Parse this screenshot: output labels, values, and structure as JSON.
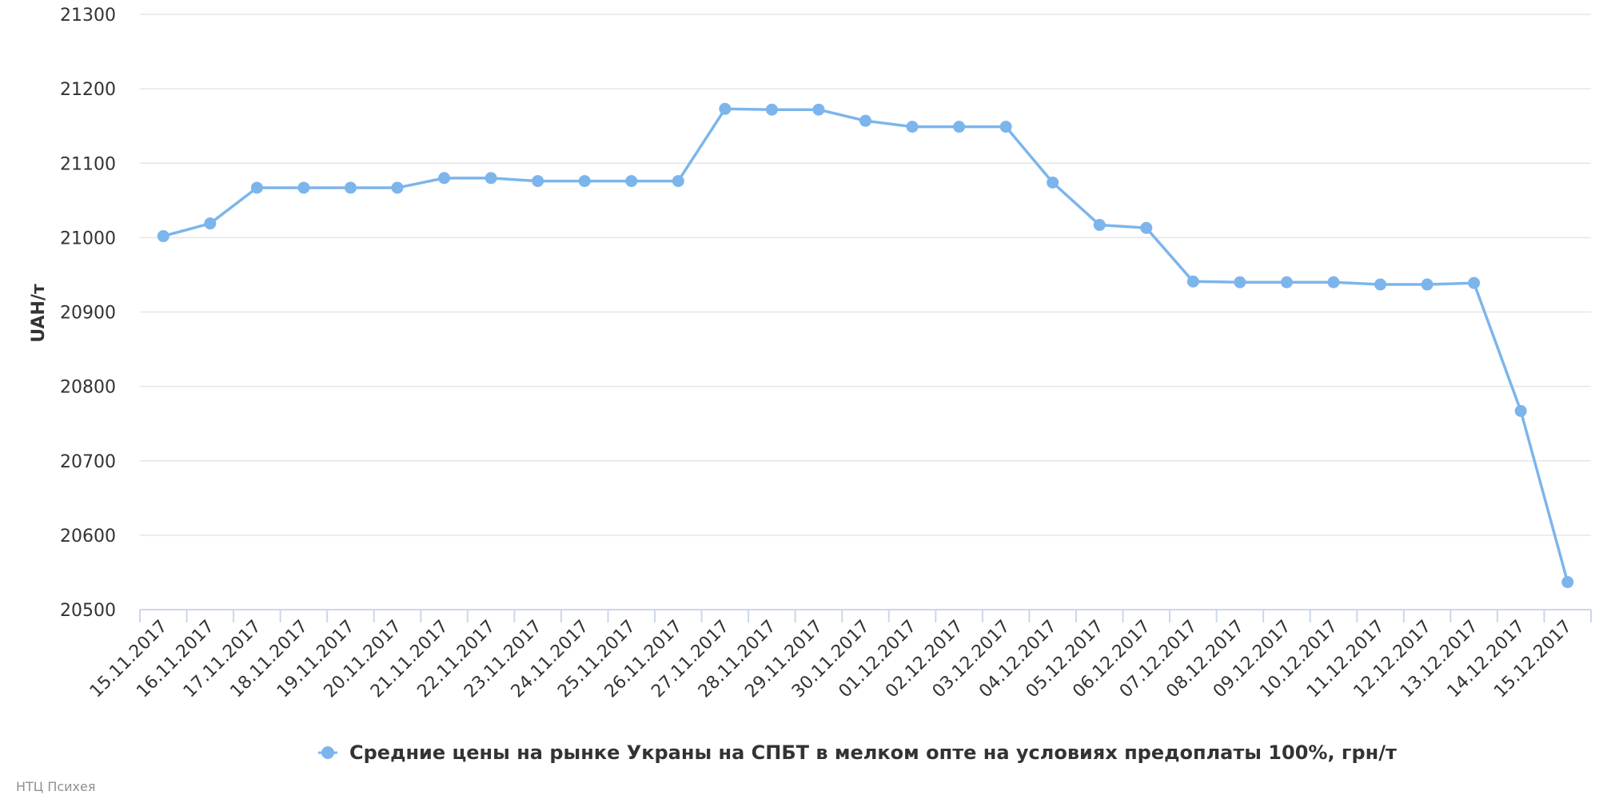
{
  "chart_data": {
    "type": "line",
    "ylabel": "UAH/т",
    "ylim": [
      20500,
      21300
    ],
    "yticks": [
      20500,
      20600,
      20700,
      20800,
      20900,
      21000,
      21100,
      21200,
      21300
    ],
    "grid": true,
    "legend_position": "bottom-center",
    "categories": [
      "15.11.2017",
      "16.11.2017",
      "17.11.2017",
      "18.11.2017",
      "19.11.2017",
      "20.11.2017",
      "21.11.2017",
      "22.11.2017",
      "23.11.2017",
      "24.11.2017",
      "25.11.2017",
      "26.11.2017",
      "27.11.2017",
      "28.11.2017",
      "29.11.2017",
      "30.11.2017",
      "01.12.2017",
      "02.12.2017",
      "03.12.2017",
      "04.12.2017",
      "05.12.2017",
      "06.12.2017",
      "07.12.2017",
      "08.12.2017",
      "09.12.2017",
      "10.12.2017",
      "11.12.2017",
      "12.12.2017",
      "13.12.2017",
      "14.12.2017",
      "15.12.2017"
    ],
    "series": [
      {
        "name": "Средние цены на рынке Украны на СПБТ в мелком опте на условиях предоплаты 100%, грн/т",
        "color": "#7cb5ec",
        "values": [
          21002,
          21019,
          21067,
          21067,
          21067,
          21067,
          21080,
          21080,
          21076,
          21076,
          21076,
          21076,
          21173,
          21172,
          21172,
          21157,
          21149,
          21149,
          21149,
          21074,
          21017,
          21013,
          20941,
          20940,
          20940,
          20940,
          20937,
          20937,
          20939,
          20767,
          20537
        ]
      }
    ]
  },
  "credit": "НТЦ Психея"
}
